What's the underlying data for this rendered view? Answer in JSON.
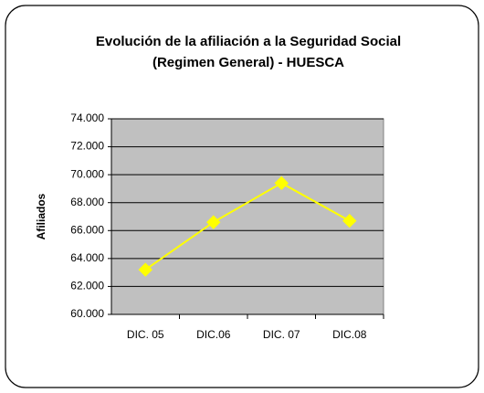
{
  "chart_data": {
    "type": "line",
    "title": [
      "Evolución de la afiliación a la Seguridad Social",
      "(Regimen General) - HUESCA"
    ],
    "y_label": "Afiliados",
    "categories": [
      "DIC. 05",
      "DIC.06",
      "DIC. 07",
      "DIC.08"
    ],
    "series": [
      {
        "name": "Afiliados",
        "color": "#ffff00",
        "values": [
          63200,
          66600,
          69400,
          66700
        ]
      }
    ],
    "ylim": [
      60000,
      74000
    ],
    "yticks": [
      {
        "value": 60000,
        "label": "60.000"
      },
      {
        "value": 62000,
        "label": "62.000"
      },
      {
        "value": 64000,
        "label": "64.000"
      },
      {
        "value": 66000,
        "label": "66.000"
      },
      {
        "value": 68000,
        "label": "68.000"
      },
      {
        "value": 70000,
        "label": "70.000"
      },
      {
        "value": 72000,
        "label": "72.000"
      },
      {
        "value": 74000,
        "label": "74.000"
      }
    ],
    "grid": true
  }
}
